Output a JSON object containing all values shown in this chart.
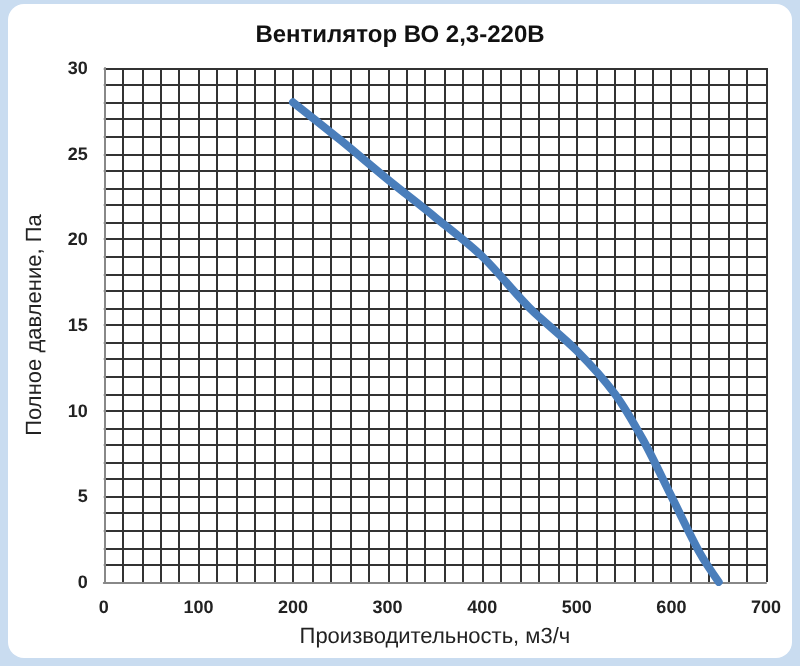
{
  "chart_data": {
    "type": "line",
    "title": "Вентилятор ВО 2,3-220В",
    "xlabel": "Производительность, м3/ч",
    "ylabel": "Полное давление, Па",
    "x": [
      200,
      250,
      300,
      350,
      400,
      450,
      500,
      540,
      570,
      600,
      630,
      650
    ],
    "series": [
      {
        "color": "#4a7ebb",
        "values": [
          28,
          25.8,
          23.5,
          21.3,
          19,
          16,
          13.5,
          11,
          8.3,
          5,
          1.7,
          0
        ]
      }
    ],
    "xlim": [
      0,
      700
    ],
    "xticks": [
      0,
      100,
      200,
      300,
      400,
      500,
      600,
      700
    ],
    "ylim": [
      0,
      30
    ],
    "yticks": [
      0,
      5,
      10,
      15,
      20,
      25,
      30
    ],
    "grid": true,
    "marker": "none",
    "line_style": "solid"
  }
}
